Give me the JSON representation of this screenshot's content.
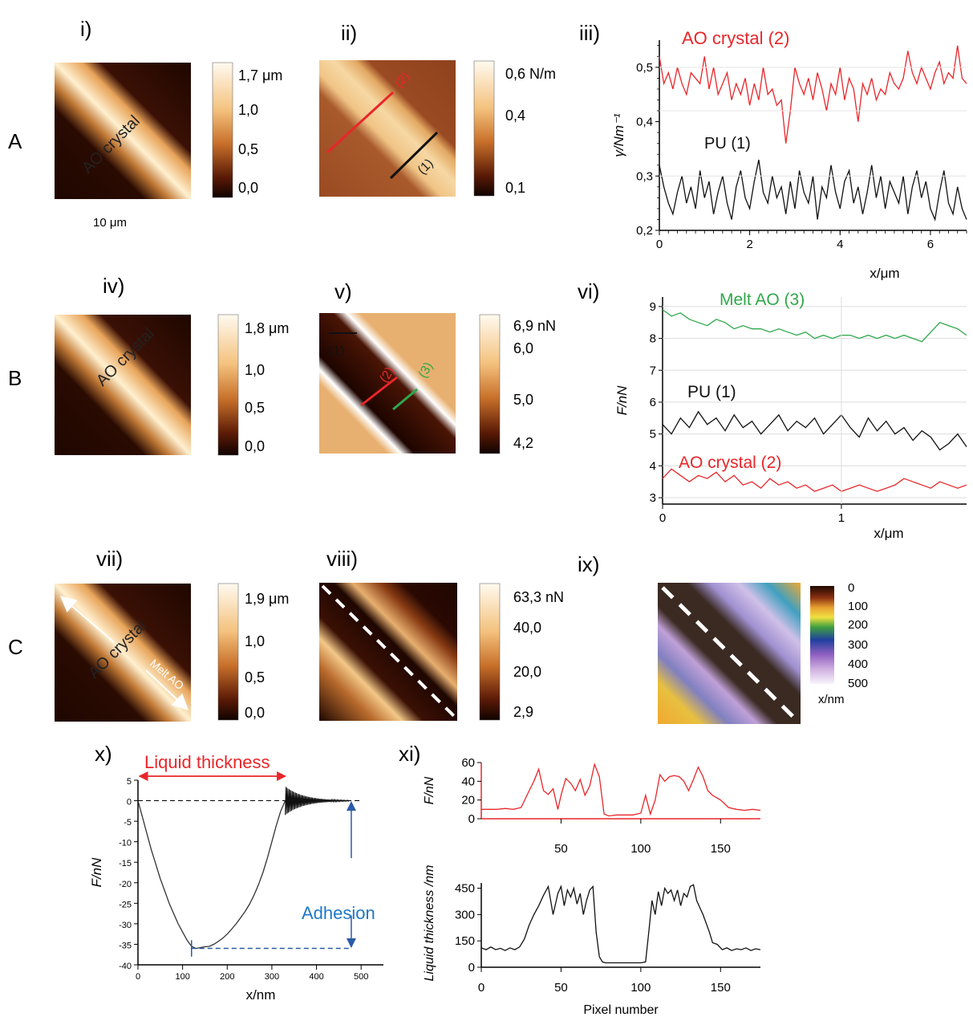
{
  "row_labels": [
    "A",
    "B",
    "C"
  ],
  "panel_labels": [
    "i)",
    "ii)",
    "iii)",
    "iv)",
    "v)",
    "vi)",
    "vii)",
    "viii)",
    "ix)",
    "x)",
    "xi)"
  ],
  "image_labels": {
    "crystal_i": "AO crystal",
    "crystal_iv": "AO crystal",
    "crystal_vii": "AO crystal",
    "melt_vii": "Melt AO",
    "scale_bar": "10 μm",
    "line1_ii": "(1)",
    "line2_ii": "(2)",
    "line1_v": "(1)",
    "line2_v": "(2)",
    "line3_v": "(3)"
  },
  "colorbars": {
    "i": [
      "1,7 μm",
      "1,0",
      "0,5",
      "0,0"
    ],
    "ii": [
      "0,6 N/m",
      "0,4",
      "0,1"
    ],
    "iv": [
      "1,8 μm",
      "1,0",
      "0,5",
      "0,0"
    ],
    "v": [
      "6,9 nN",
      "6,0",
      "5,0",
      "4,2"
    ],
    "vii": [
      "1,9 μm",
      "1,0",
      "0,5",
      "0,0"
    ],
    "viii": [
      "63,3 nN",
      "40,0",
      "20,0",
      "2,9"
    ],
    "ix": [
      "0",
      "100",
      "200",
      "300",
      "400",
      "500"
    ],
    "ix_unit": "x/nm"
  },
  "colors": {
    "red": "#e8262a",
    "black": "#111111",
    "green": "#2ea84a",
    "blue": "#2b5aa8",
    "adhesion_text": "#1f78c8",
    "afm_dark": "#1e0700",
    "afm_light": "#fff3da"
  },
  "chart_data": [
    {
      "id": "iii",
      "type": "line",
      "xlabel": "x/μm",
      "ylabel": "γ/Nm⁻¹",
      "xlim": [
        0,
        6.8
      ],
      "ylim": [
        0.2,
        0.55
      ],
      "xticks": [
        "0",
        "2",
        "4",
        "6"
      ],
      "yticks": [
        "0,2",
        "0,3",
        "0,4",
        "0,5"
      ],
      "series": [
        {
          "name": "AO crystal (2)",
          "color": "#e8262a",
          "x": [
            0,
            0.1,
            0.2,
            0.3,
            0.4,
            0.5,
            0.6,
            0.7,
            0.8,
            0.9,
            1.0,
            1.1,
            1.2,
            1.3,
            1.4,
            1.5,
            1.6,
            1.7,
            1.8,
            1.9,
            2.0,
            2.1,
            2.2,
            2.3,
            2.4,
            2.5,
            2.6,
            2.7,
            2.8,
            2.9,
            3.0,
            3.1,
            3.2,
            3.3,
            3.4,
            3.5,
            3.6,
            3.7,
            3.8,
            3.9,
            4.0,
            4.1,
            4.2,
            4.3,
            4.4,
            4.5,
            4.6,
            4.7,
            4.8,
            4.9,
            5.0,
            5.1,
            5.2,
            5.3,
            5.4,
            5.5,
            5.6,
            5.7,
            5.8,
            5.9,
            6.0,
            6.1,
            6.2,
            6.3,
            6.4,
            6.5,
            6.6,
            6.7,
            6.8
          ],
          "y": [
            0.52,
            0.47,
            0.49,
            0.46,
            0.5,
            0.47,
            0.45,
            0.49,
            0.48,
            0.47,
            0.52,
            0.46,
            0.5,
            0.45,
            0.47,
            0.49,
            0.44,
            0.47,
            0.45,
            0.48,
            0.43,
            0.47,
            0.44,
            0.5,
            0.45,
            0.46,
            0.43,
            0.44,
            0.36,
            0.42,
            0.5,
            0.47,
            0.45,
            0.48,
            0.44,
            0.49,
            0.46,
            0.42,
            0.47,
            0.45,
            0.5,
            0.44,
            0.48,
            0.46,
            0.4,
            0.47,
            0.45,
            0.48,
            0.44,
            0.46,
            0.45,
            0.49,
            0.47,
            0.46,
            0.48,
            0.53,
            0.49,
            0.47,
            0.5,
            0.48,
            0.46,
            0.49,
            0.51,
            0.47,
            0.49,
            0.48,
            0.54,
            0.48,
            0.47
          ]
        },
        {
          "name": "PU (1)",
          "color": "#111111",
          "x": [
            0,
            0.1,
            0.2,
            0.3,
            0.4,
            0.5,
            0.6,
            0.7,
            0.8,
            0.9,
            1.0,
            1.1,
            1.2,
            1.3,
            1.4,
            1.5,
            1.6,
            1.7,
            1.8,
            1.9,
            2.0,
            2.1,
            2.2,
            2.3,
            2.4,
            2.5,
            2.6,
            2.7,
            2.8,
            2.9,
            3.0,
            3.1,
            3.2,
            3.3,
            3.4,
            3.5,
            3.6,
            3.7,
            3.8,
            3.9,
            4.0,
            4.1,
            4.2,
            4.3,
            4.4,
            4.5,
            4.6,
            4.7,
            4.8,
            4.9,
            5.0,
            5.1,
            5.2,
            5.3,
            5.4,
            5.5,
            5.6,
            5.7,
            5.8,
            5.9,
            6.0,
            6.1,
            6.2,
            6.3,
            6.4,
            6.5,
            6.6,
            6.7,
            6.8
          ],
          "y": [
            0.32,
            0.28,
            0.25,
            0.23,
            0.27,
            0.3,
            0.25,
            0.28,
            0.24,
            0.31,
            0.26,
            0.29,
            0.23,
            0.27,
            0.3,
            0.25,
            0.22,
            0.28,
            0.31,
            0.26,
            0.24,
            0.29,
            0.33,
            0.27,
            0.25,
            0.3,
            0.26,
            0.28,
            0.23,
            0.29,
            0.24,
            0.31,
            0.27,
            0.25,
            0.3,
            0.22,
            0.28,
            0.26,
            0.32,
            0.27,
            0.24,
            0.29,
            0.31,
            0.25,
            0.28,
            0.23,
            0.27,
            0.32,
            0.26,
            0.3,
            0.24,
            0.29,
            0.27,
            0.25,
            0.3,
            0.23,
            0.28,
            0.31,
            0.26,
            0.29,
            0.24,
            0.22,
            0.27,
            0.31,
            0.25,
            0.23,
            0.28,
            0.24,
            0.22
          ]
        }
      ]
    },
    {
      "id": "vi",
      "type": "line",
      "xlabel": "x/μm",
      "ylabel": "F/nN",
      "xlim": [
        0,
        1.7
      ],
      "ylim": [
        2.8,
        9.3
      ],
      "xticks": [
        "0",
        "1"
      ],
      "yticks": [
        "3",
        "4",
        "5",
        "6",
        "7",
        "8",
        "9"
      ],
      "series": [
        {
          "name": "Melt AO (3)",
          "color": "#2ea84a",
          "x": [
            0,
            0.05,
            0.1,
            0.15,
            0.2,
            0.25,
            0.3,
            0.35,
            0.4,
            0.45,
            0.5,
            0.55,
            0.6,
            0.65,
            0.7,
            0.75,
            0.8,
            0.85,
            0.9,
            0.95,
            1.0,
            1.05,
            1.1,
            1.15,
            1.2,
            1.25,
            1.3,
            1.35,
            1.4,
            1.45,
            1.5,
            1.55,
            1.6,
            1.65,
            1.7
          ],
          "y": [
            8.9,
            8.7,
            8.8,
            8.6,
            8.5,
            8.4,
            8.6,
            8.5,
            8.3,
            8.4,
            8.3,
            8.3,
            8.2,
            8.3,
            8.2,
            8.1,
            8.2,
            8.0,
            8.1,
            8.0,
            8.1,
            8.1,
            8.0,
            8.1,
            8.0,
            8.1,
            8.0,
            8.1,
            8.0,
            7.9,
            8.2,
            8.5,
            8.4,
            8.3,
            8.1
          ]
        },
        {
          "name": "PU (1)",
          "color": "#111111",
          "x": [
            0,
            0.05,
            0.1,
            0.15,
            0.2,
            0.25,
            0.3,
            0.35,
            0.4,
            0.45,
            0.5,
            0.55,
            0.6,
            0.65,
            0.7,
            0.75,
            0.8,
            0.85,
            0.9,
            0.95,
            1.0,
            1.05,
            1.1,
            1.15,
            1.2,
            1.25,
            1.3,
            1.35,
            1.4,
            1.45,
            1.5,
            1.55,
            1.6,
            1.65,
            1.7
          ],
          "y": [
            5.3,
            5.0,
            5.5,
            5.2,
            5.7,
            5.3,
            5.5,
            5.1,
            5.6,
            5.2,
            5.4,
            5.0,
            5.3,
            5.6,
            5.1,
            5.4,
            5.2,
            5.5,
            5.0,
            5.3,
            5.6,
            5.2,
            4.9,
            5.5,
            5.1,
            5.4,
            5.0,
            5.2,
            4.8,
            5.1,
            4.9,
            4.5,
            4.7,
            5.0,
            4.6
          ]
        },
        {
          "name": "AO crystal (2)",
          "color": "#e8262a",
          "x": [
            0,
            0.05,
            0.1,
            0.15,
            0.2,
            0.25,
            0.3,
            0.35,
            0.4,
            0.45,
            0.5,
            0.55,
            0.6,
            0.65,
            0.7,
            0.75,
            0.8,
            0.85,
            0.9,
            0.95,
            1.0,
            1.05,
            1.1,
            1.15,
            1.2,
            1.25,
            1.3,
            1.35,
            1.4,
            1.45,
            1.5,
            1.55,
            1.6,
            1.65,
            1.7
          ],
          "y": [
            3.6,
            3.9,
            3.7,
            3.5,
            3.7,
            3.6,
            3.8,
            3.5,
            3.7,
            3.4,
            3.5,
            3.3,
            3.6,
            3.4,
            3.5,
            3.3,
            3.4,
            3.2,
            3.3,
            3.4,
            3.2,
            3.3,
            3.4,
            3.3,
            3.2,
            3.3,
            3.4,
            3.6,
            3.5,
            3.4,
            3.3,
            3.5,
            3.4,
            3.3,
            3.4
          ]
        }
      ]
    },
    {
      "id": "x",
      "type": "line",
      "xlabel": "x/nm",
      "ylabel": "F/nN",
      "xlim": [
        0,
        550
      ],
      "ylim": [
        -40,
        5
      ],
      "xticks": [
        "0",
        "100",
        "200",
        "300",
        "400",
        "500"
      ],
      "yticks": [
        "-40",
        "-35",
        "-30",
        "-25",
        "-20",
        "-15",
        "-10",
        "-5",
        "0",
        "5"
      ],
      "annotations": {
        "liquid_thickness": "Liquid thickness",
        "adhesion": "Adhesion"
      },
      "series": [
        {
          "name": "",
          "color": "#333333",
          "x": [
            0,
            10,
            20,
            30,
            40,
            50,
            60,
            70,
            80,
            90,
            100,
            110,
            120,
            130,
            140,
            150,
            160,
            170,
            180,
            190,
            200,
            210,
            220,
            230,
            240,
            250,
            260,
            270,
            280,
            290,
            300,
            310,
            320,
            330
          ],
          "y": [
            0,
            -4,
            -8,
            -12,
            -15.5,
            -19,
            -22,
            -25,
            -27.5,
            -30,
            -32,
            -34,
            -35.5,
            -36,
            -35.8,
            -35.6,
            -35.5,
            -35,
            -34.3,
            -33.5,
            -32.5,
            -31.3,
            -30,
            -28.5,
            -27,
            -25.2,
            -23,
            -20.5,
            -17.5,
            -14,
            -10,
            -6,
            -2.5,
            0
          ]
        }
      ],
      "oscillation": {
        "x_start": 330,
        "x_end": 475,
        "amplitude_start": 3.5
      }
    },
    {
      "id": "xi_top",
      "type": "line",
      "xlabel": "",
      "ylabel": "F/nN",
      "xlim": [
        0,
        175
      ],
      "ylim": [
        0,
        60
      ],
      "xticks": [
        "50",
        "100",
        "150"
      ],
      "yticks": [
        "0",
        "20",
        "40",
        "60"
      ],
      "series": [
        {
          "name": "",
          "color": "#e8262a",
          "x": [
            0,
            5,
            10,
            15,
            20,
            25,
            30,
            33,
            36,
            39,
            42,
            45,
            48,
            50,
            53,
            56,
            59,
            62,
            65,
            68,
            71,
            74,
            77,
            80,
            85,
            90,
            95,
            100,
            103,
            106,
            109,
            112,
            115,
            118,
            121,
            124,
            127,
            130,
            133,
            136,
            139,
            142,
            145,
            150,
            155,
            160,
            165,
            170,
            175
          ],
          "y": [
            10,
            10,
            10,
            11,
            10,
            12,
            30,
            40,
            53,
            30,
            26,
            32,
            10,
            25,
            43,
            38,
            30,
            42,
            25,
            35,
            58,
            45,
            5,
            3,
            4,
            4,
            4,
            6,
            25,
            5,
            20,
            47,
            40,
            45,
            46,
            45,
            40,
            30,
            42,
            55,
            45,
            30,
            25,
            20,
            12,
            10,
            9,
            10,
            9
          ]
        }
      ]
    },
    {
      "id": "xi_bottom",
      "type": "line",
      "xlabel": "Pixel number",
      "ylabel": "Liquid thickness /nm",
      "xlim": [
        0,
        175
      ],
      "ylim": [
        0,
        480
      ],
      "xticks": [
        "0",
        "50",
        "100",
        "150"
      ],
      "yticks": [
        "0",
        "150",
        "300",
        "450"
      ],
      "series": [
        {
          "name": "",
          "color": "#111111",
          "x": [
            0,
            3,
            6,
            9,
            12,
            15,
            18,
            21,
            24,
            27,
            30,
            33,
            36,
            39,
            42,
            45,
            48,
            50,
            52,
            54,
            56,
            58,
            60,
            62,
            64,
            66,
            68,
            70,
            72,
            74,
            76,
            78,
            80,
            85,
            90,
            95,
            100,
            103,
            105,
            107,
            109,
            111,
            113,
            115,
            117,
            119,
            121,
            123,
            125,
            127,
            129,
            131,
            133,
            135,
            137,
            139,
            141,
            143,
            145,
            148,
            151,
            154,
            157,
            160,
            163,
            166,
            169,
            172,
            175
          ],
          "y": [
            110,
            100,
            115,
            100,
            108,
            95,
            110,
            100,
            115,
            160,
            240,
            300,
            350,
            410,
            460,
            300,
            420,
            460,
            350,
            440,
            400,
            450,
            360,
            420,
            300,
            380,
            440,
            460,
            200,
            60,
            30,
            25,
            25,
            25,
            25,
            25,
            25,
            30,
            200,
            380,
            300,
            430,
            350,
            450,
            420,
            440,
            380,
            440,
            350,
            420,
            400,
            460,
            470,
            380,
            340,
            300,
            250,
            200,
            140,
            130,
            100,
            110,
            95,
            105,
            100,
            110,
            95,
            105,
            100
          ]
        }
      ]
    }
  ]
}
